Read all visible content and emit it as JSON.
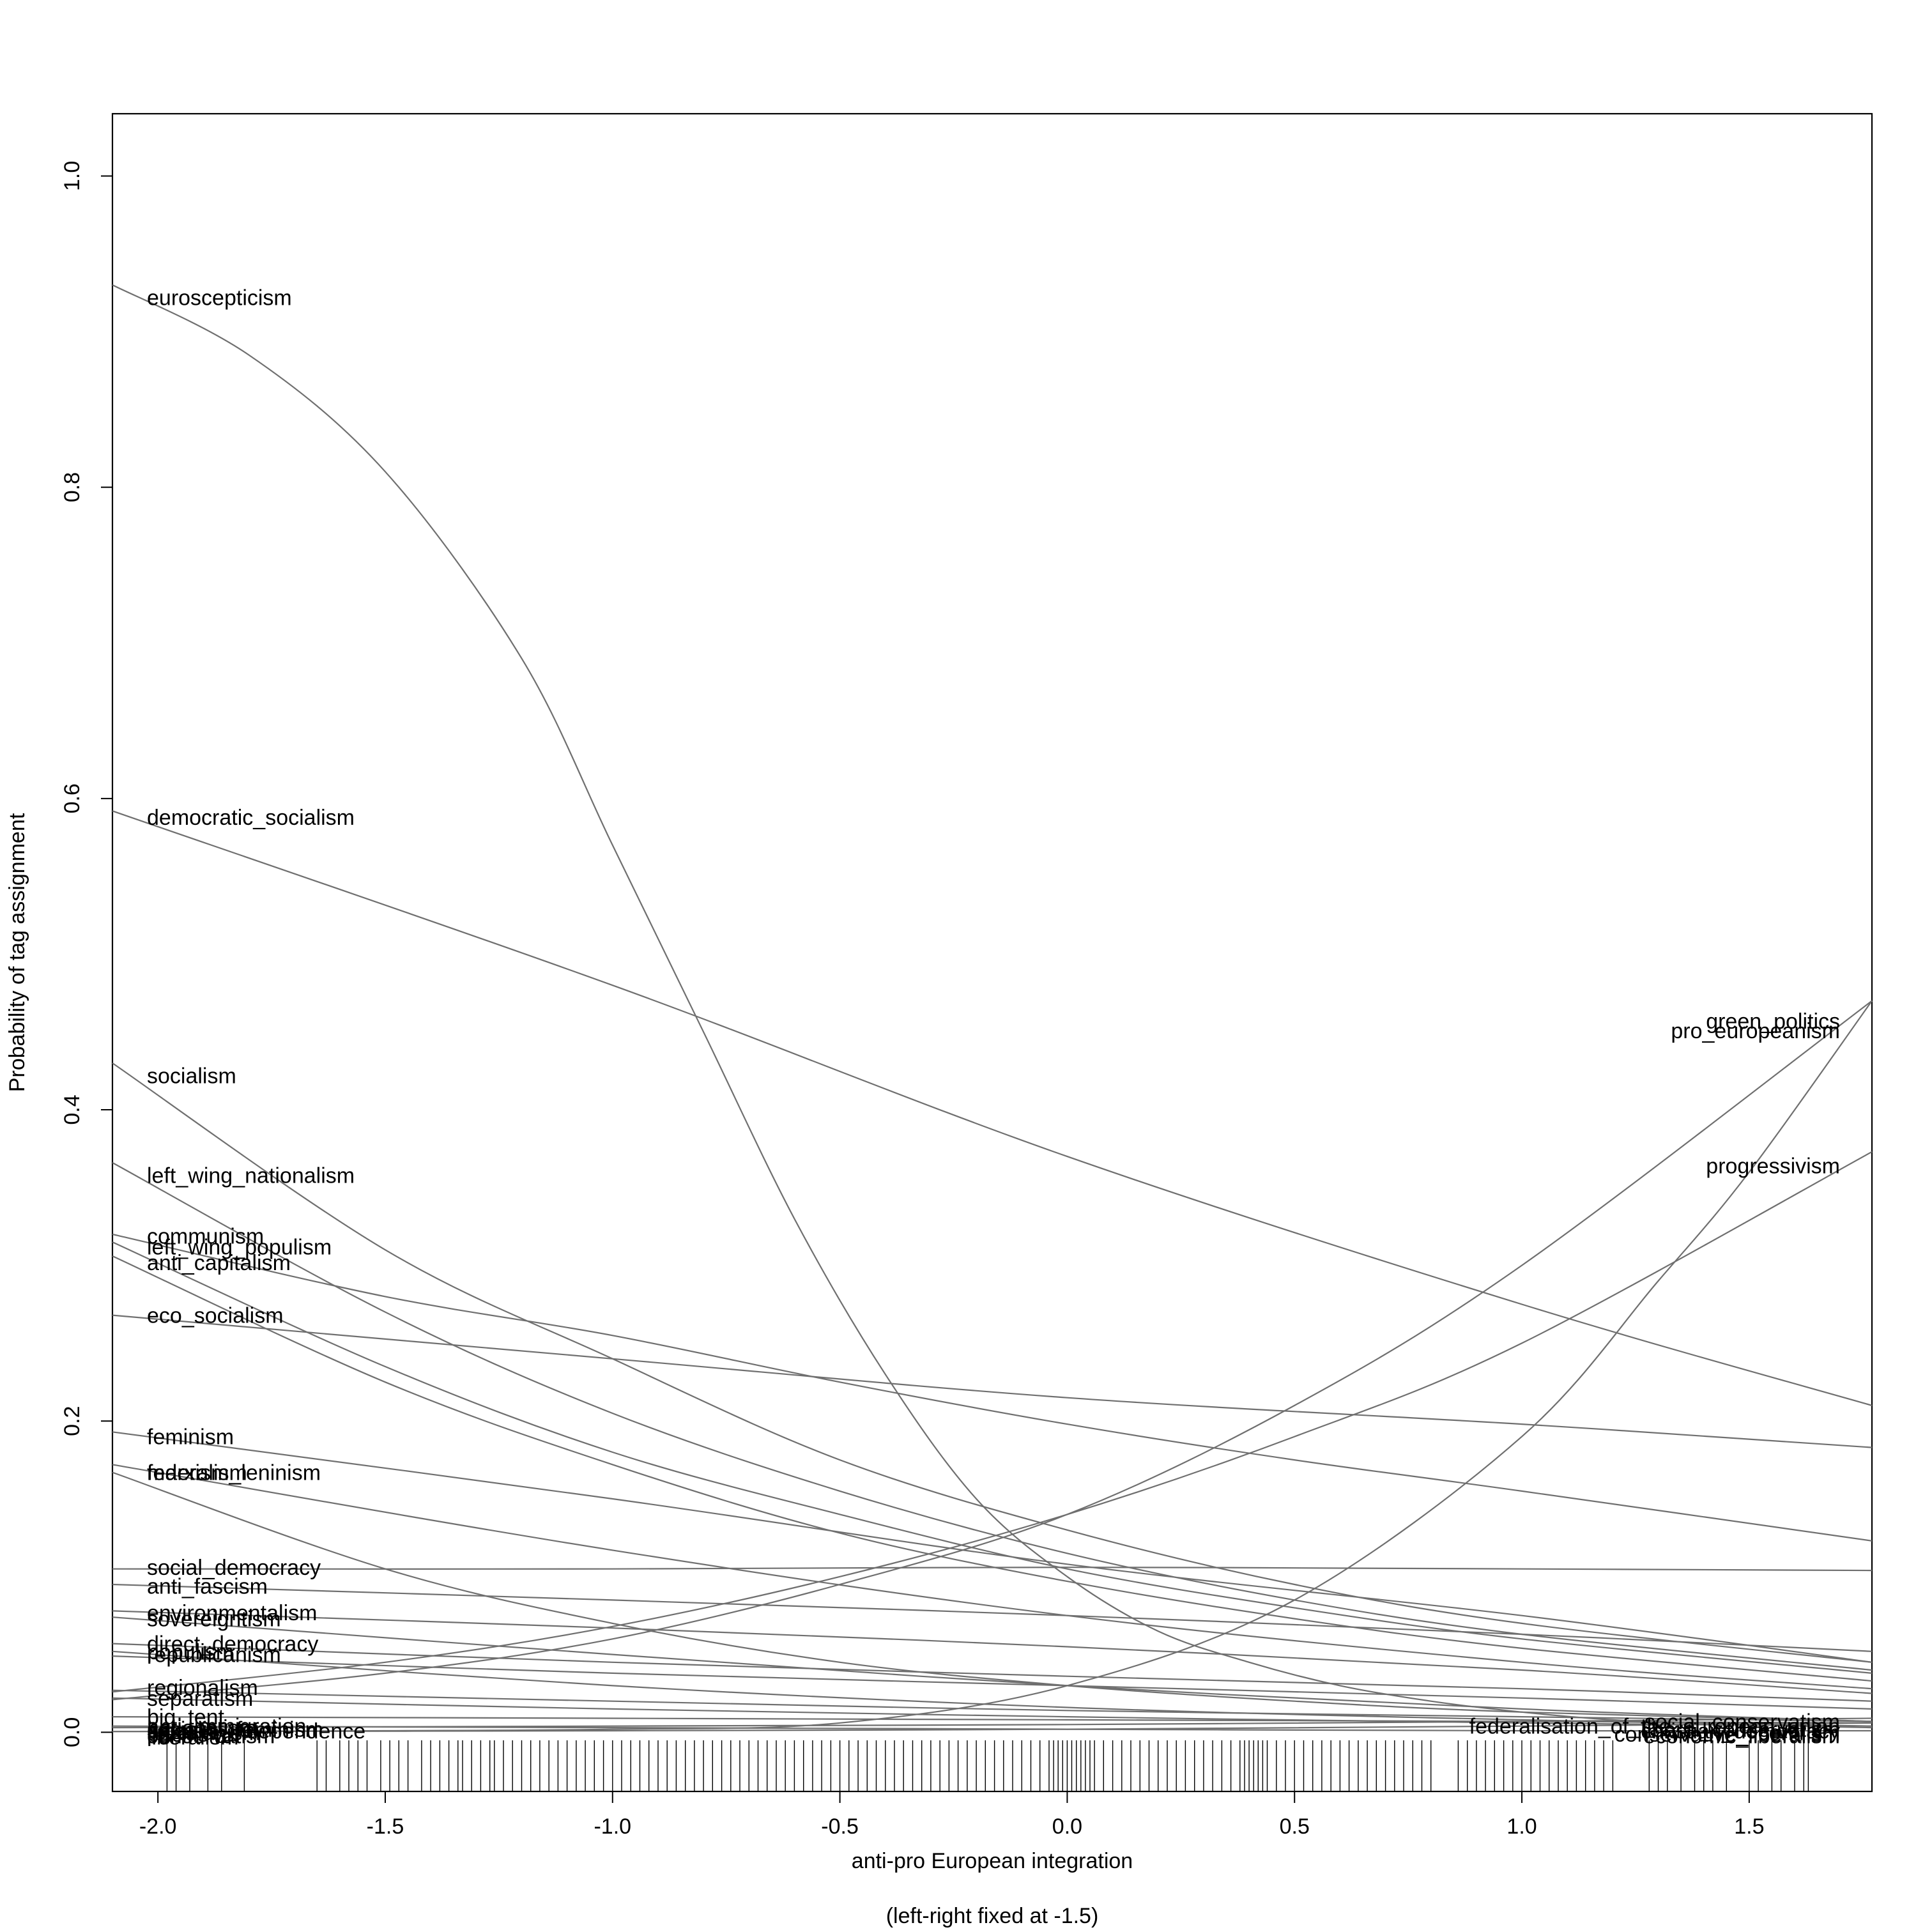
{
  "chart_data": {
    "type": "line",
    "xlabel": "anti-pro European integration",
    "xlabel_note": "(left-right fixed at -1.5)",
    "ylabel": "Probability of tag assignment",
    "xlim": [
      -2.1,
      1.77
    ],
    "ylim": [
      -0.038,
      1.04
    ],
    "x_ticks": [
      -2.0,
      -1.5,
      -1.0,
      -0.5,
      0.0,
      0.5,
      1.0,
      1.5
    ],
    "x_tick_labels": [
      "-2.0",
      "-1.5",
      "-1.0",
      "-0.5",
      "0.0",
      "0.5",
      "1.0",
      "1.5"
    ],
    "y_ticks": [
      0.0,
      0.2,
      0.4,
      0.6,
      0.8,
      1.0
    ],
    "y_tick_labels": [
      "0.0",
      "0.2",
      "0.4",
      "0.6",
      "0.8",
      "1.0"
    ],
    "grid": false,
    "legend": "none",
    "line_color": "#6f6f6f",
    "series": [
      {
        "name": "euroscepticism",
        "label_side": "left",
        "x": [
          -2.1,
          -1.8,
          -1.5,
          -1.2,
          -1.0,
          -0.8,
          -0.6,
          -0.4,
          -0.2,
          0.0,
          0.2,
          0.4,
          0.6,
          0.8,
          1.0,
          1.2,
          1.4,
          1.6,
          1.77
        ],
        "values": [
          0.93,
          0.885,
          0.81,
          0.69,
          0.57,
          0.45,
          0.33,
          0.23,
          0.15,
          0.1,
          0.065,
          0.045,
          0.03,
          0.02,
          0.013,
          0.008,
          0.006,
          0.004,
          0.003
        ]
      },
      {
        "name": "democratic_socialism",
        "label_side": "left",
        "x": [
          -2.1,
          -1.0,
          0.0,
          1.0,
          1.77
        ],
        "values": [
          0.592,
          0.48,
          0.37,
          0.275,
          0.21
        ]
      },
      {
        "name": "socialism",
        "label_side": "left",
        "x": [
          -2.1,
          -1.5,
          -1.0,
          -0.5,
          0.0,
          0.5,
          1.0,
          1.77
        ],
        "values": [
          0.43,
          0.31,
          0.24,
          0.175,
          0.13,
          0.095,
          0.07,
          0.045
        ]
      },
      {
        "name": "left_wing_nationalism",
        "label_side": "left",
        "x": [
          -2.1,
          -1.5,
          -1.0,
          -0.5,
          0.0,
          0.5,
          1.0,
          1.77
        ],
        "values": [
          0.366,
          0.27,
          0.205,
          0.155,
          0.115,
          0.085,
          0.063,
          0.04
        ]
      },
      {
        "name": "communism",
        "label_side": "left",
        "x": [
          -2.1,
          -1.5,
          -1.0,
          -0.5,
          0.0,
          0.5,
          1.0,
          1.77
        ],
        "values": [
          0.32,
          0.28,
          0.255,
          0.225,
          0.198,
          0.175,
          0.155,
          0.123
        ]
      },
      {
        "name": "left_wing_populism",
        "label_side": "left",
        "x": [
          -2.1,
          -1.5,
          -1.0,
          -0.5,
          0.0,
          0.5,
          1.0,
          1.77
        ],
        "values": [
          0.315,
          0.235,
          0.18,
          0.14,
          0.105,
          0.08,
          0.06,
          0.038
        ]
      },
      {
        "name": "anti_capitalism",
        "label_side": "left",
        "x": [
          -2.1,
          -1.5,
          -1.0,
          -0.5,
          0.0,
          0.5,
          1.0,
          1.77
        ],
        "values": [
          0.306,
          0.225,
          0.172,
          0.128,
          0.097,
          0.073,
          0.054,
          0.033
        ]
      },
      {
        "name": "eco_socialism",
        "label_side": "left",
        "x": [
          -2.1,
          -1.0,
          0.0,
          1.0,
          1.77
        ],
        "values": [
          0.268,
          0.24,
          0.215,
          0.198,
          0.183
        ]
      },
      {
        "name": "feminism",
        "label_side": "left",
        "x": [
          -2.1,
          -1.0,
          0.0,
          1.0,
          1.77
        ],
        "values": [
          0.193,
          0.15,
          0.108,
          0.075,
          0.045
        ]
      },
      {
        "name": "federalism",
        "label_side": "left",
        "x": [
          -2.1,
          -1.0,
          0.0,
          1.0,
          1.77
        ],
        "values": [
          0.172,
          0.117,
          0.075,
          0.045,
          0.028
        ]
      },
      {
        "name": "marxism_leninism",
        "label_side": "left",
        "x": [
          -2.1,
          -1.5,
          -1.0,
          -0.5,
          0.0,
          0.5,
          1.0,
          1.77
        ],
        "values": [
          0.167,
          0.105,
          0.07,
          0.045,
          0.03,
          0.02,
          0.013,
          0.007
        ]
      },
      {
        "name": "social_democracy",
        "label_side": "left",
        "x": [
          -2.1,
          -1.0,
          0.0,
          1.0,
          1.77
        ],
        "values": [
          0.105,
          0.105,
          0.106,
          0.105,
          0.104
        ]
      },
      {
        "name": "anti_fascism",
        "label_side": "left",
        "x": [
          -2.1,
          -1.0,
          0.0,
          1.0,
          1.77
        ],
        "values": [
          0.095,
          0.085,
          0.075,
          0.063,
          0.052
        ]
      },
      {
        "name": "environmentalism",
        "label_side": "left",
        "x": [
          -2.1,
          -1.0,
          0.0,
          1.0,
          1.77
        ],
        "values": [
          0.078,
          0.067,
          0.055,
          0.04,
          0.025
        ]
      },
      {
        "name": "sovereigntism",
        "label_side": "left",
        "x": [
          -2.1,
          -1.0,
          0.0,
          1.0,
          1.77
        ],
        "values": [
          0.074,
          0.05,
          0.03,
          0.015,
          0.007
        ]
      },
      {
        "name": "direct_democracy",
        "label_side": "left",
        "x": [
          -2.1,
          -1.0,
          0.0,
          1.0,
          1.77
        ],
        "values": [
          0.057,
          0.045,
          0.036,
          0.028,
          0.02
        ]
      },
      {
        "name": "populism",
        "label_side": "left",
        "x": [
          -2.1,
          -1.0,
          0.0,
          1.0,
          1.77
        ],
        "values": [
          0.052,
          0.03,
          0.016,
          0.008,
          0.004
        ]
      },
      {
        "name": "republicanism",
        "label_side": "left",
        "x": [
          -2.1,
          -1.0,
          0.0,
          1.0,
          1.77
        ],
        "values": [
          0.049,
          0.038,
          0.03,
          0.022,
          0.015
        ]
      },
      {
        "name": "regionalism",
        "label_side": "left",
        "x": [
          -2.1,
          -1.0,
          0.0,
          1.0,
          1.77
        ],
        "values": [
          0.027,
          0.02,
          0.014,
          0.01,
          0.007
        ]
      },
      {
        "name": "separatism",
        "label_side": "left",
        "x": [
          -2.1,
          -1.0,
          0.0,
          1.0,
          1.77
        ],
        "values": [
          0.022,
          0.015,
          0.01,
          0.006,
          0.004
        ]
      },
      {
        "name": "big_tent",
        "label_side": "left",
        "x": [
          -2.1,
          -1.0,
          0.0,
          1.0,
          1.77
        ],
        "values": [
          0.01,
          0.009,
          0.008,
          0.007,
          0.006
        ]
      },
      {
        "name": "anti_immigration",
        "label_side": "left",
        "x": [
          -2.1,
          -1.0,
          0.0,
          1.0,
          1.77
        ],
        "values": [
          0.004,
          0.003,
          0.002,
          0.001,
          0.001
        ]
      },
      {
        "name": "green_politics",
        "label_side": "right",
        "x": [
          -2.1,
          -1.5,
          -1.0,
          -0.5,
          0.0,
          0.5,
          1.0,
          1.77
        ],
        "values": [
          0.021,
          0.038,
          0.06,
          0.095,
          0.14,
          0.21,
          0.3,
          0.47
        ]
      },
      {
        "name": "pro_europeanism",
        "label_side": "right",
        "x": [
          -2.1,
          -1.5,
          -1.0,
          -0.5,
          0.0,
          0.5,
          1.0,
          1.3,
          1.5,
          1.77
        ],
        "values": [
          0.0005,
          0.001,
          0.002,
          0.006,
          0.03,
          0.085,
          0.19,
          0.29,
          0.36,
          0.47
        ]
      },
      {
        "name": "progressivism",
        "label_side": "right",
        "x": [
          -2.1,
          -1.5,
          -1.0,
          -0.5,
          0.0,
          0.5,
          1.0,
          1.77
        ],
        "values": [
          0.026,
          0.045,
          0.068,
          0.1,
          0.14,
          0.19,
          0.25,
          0.373
        ]
      },
      {
        "name": "social_conservatism",
        "label_side": "right",
        "x": [
          -2.1,
          -1.0,
          0.0,
          1.0,
          1.77
        ],
        "values": [
          0.003,
          0.004,
          0.005,
          0.007,
          0.009
        ]
      },
      {
        "name": "federalisation_of_the_european_union",
        "label_side": "right",
        "x": [
          -2.1,
          -1.0,
          0.0,
          1.0,
          1.77
        ],
        "values": [
          0.0005,
          0.001,
          0.002,
          0.004,
          0.006
        ]
      }
    ],
    "annotations": {
      "left_labels": [
        {
          "text": "euroscepticism",
          "y": 0.922
        },
        {
          "text": "democratic_socialism",
          "y": 0.588
        },
        {
          "text": "socialism",
          "y": 0.422
        },
        {
          "text": "left_wing_nationalism",
          "y": 0.358
        },
        {
          "text": "communism",
          "y": 0.319
        },
        {
          "text": "left_wing_populism",
          "y": 0.312
        },
        {
          "text": "anti_capitalism",
          "y": 0.302
        },
        {
          "text": "eco_socialism",
          "y": 0.268
        },
        {
          "text": "feminism",
          "y": 0.19
        },
        {
          "text": "federalism",
          "y": 0.167
        },
        {
          "text": "marxism_leninism",
          "y": 0.167
        },
        {
          "text": "social_democracy",
          "y": 0.106
        },
        {
          "text": "anti_fascism",
          "y": 0.094
        },
        {
          "text": "environmentalism",
          "y": 0.077
        },
        {
          "text": "sovereigntism",
          "y": 0.073
        },
        {
          "text": "direct_democracy",
          "y": 0.057
        },
        {
          "text": "populism",
          "y": 0.052
        },
        {
          "text": "republicanism",
          "y": 0.05
        },
        {
          "text": "regionalism",
          "y": 0.029
        },
        {
          "text": "separatism",
          "y": 0.022
        },
        {
          "text": "big_tent",
          "y": 0.01
        },
        {
          "text": "anti_immigration",
          "y": 0.004
        },
        {
          "text": "nationalism",
          "y": 0.003
        },
        {
          "text": "socialist_feminism",
          "y": 0.002
        },
        {
          "text": "catalan_independence",
          "y": 0.001
        },
        {
          "text": "agrarianism",
          "y": 0.0
        },
        {
          "text": "pacifism",
          "y": -0.001
        },
        {
          "text": "conservatism",
          "y": -0.002
        },
        {
          "text": "liberalism",
          "y": -0.003
        }
      ],
      "right_labels": [
        {
          "text": "green_politics",
          "y": 0.457
        },
        {
          "text": "pro_europeanism",
          "y": 0.451
        },
        {
          "text": "progressivism",
          "y": 0.364
        },
        {
          "text": "social_conservatism",
          "y": 0.007
        },
        {
          "text": "federalisation_of_the_european_union",
          "y": 0.004
        },
        {
          "text": "liberal_conservatism",
          "y": 0.002
        },
        {
          "text": "christian_democracy",
          "y": 0.001
        },
        {
          "text": "centrism",
          "y": 0.0
        },
        {
          "text": "conservative_liberalism",
          "y": -0.001
        },
        {
          "text": "economic_liberalism",
          "y": -0.002
        }
      ]
    },
    "rug_x": [
      -1.98,
      -1.96,
      -1.93,
      -1.89,
      -1.86,
      -1.81,
      -1.65,
      -1.63,
      -1.6,
      -1.58,
      -1.56,
      -1.54,
      -1.51,
      -1.49,
      -1.47,
      -1.45,
      -1.42,
      -1.4,
      -1.38,
      -1.36,
      -1.34,
      -1.33,
      -1.31,
      -1.29,
      -1.27,
      -1.26,
      -1.24,
      -1.22,
      -1.2,
      -1.18,
      -1.16,
      -1.14,
      -1.12,
      -1.1,
      -1.08,
      -1.06,
      -1.04,
      -1.02,
      -1.0,
      -0.98,
      -0.96,
      -0.94,
      -0.92,
      -0.9,
      -0.88,
      -0.86,
      -0.84,
      -0.82,
      -0.8,
      -0.78,
      -0.76,
      -0.74,
      -0.72,
      -0.7,
      -0.68,
      -0.66,
      -0.64,
      -0.62,
      -0.6,
      -0.58,
      -0.56,
      -0.54,
      -0.52,
      -0.5,
      -0.48,
      -0.46,
      -0.44,
      -0.42,
      -0.4,
      -0.38,
      -0.36,
      -0.34,
      -0.32,
      -0.3,
      -0.28,
      -0.26,
      -0.24,
      -0.22,
      -0.2,
      -0.18,
      -0.16,
      -0.14,
      -0.12,
      -0.1,
      -0.08,
      -0.06,
      -0.04,
      -0.03,
      -0.02,
      -0.01,
      0.0,
      0.01,
      0.02,
      0.03,
      0.04,
      0.05,
      0.06,
      0.08,
      0.1,
      0.12,
      0.14,
      0.16,
      0.18,
      0.2,
      0.22,
      0.24,
      0.26,
      0.28,
      0.3,
      0.32,
      0.34,
      0.36,
      0.38,
      0.39,
      0.4,
      0.41,
      0.42,
      0.43,
      0.44,
      0.46,
      0.48,
      0.5,
      0.52,
      0.54,
      0.56,
      0.58,
      0.6,
      0.62,
      0.64,
      0.66,
      0.68,
      0.7,
      0.72,
      0.74,
      0.76,
      0.78,
      0.8,
      0.86,
      0.88,
      0.9,
      0.92,
      0.94,
      0.96,
      0.98,
      1.0,
      1.02,
      1.04,
      1.06,
      1.08,
      1.1,
      1.12,
      1.14,
      1.16,
      1.18,
      1.2,
      1.28,
      1.3,
      1.32,
      1.35,
      1.38,
      1.4,
      1.42,
      1.45,
      1.5,
      1.52,
      1.55,
      1.57,
      1.6,
      1.62,
      1.63
    ]
  }
}
